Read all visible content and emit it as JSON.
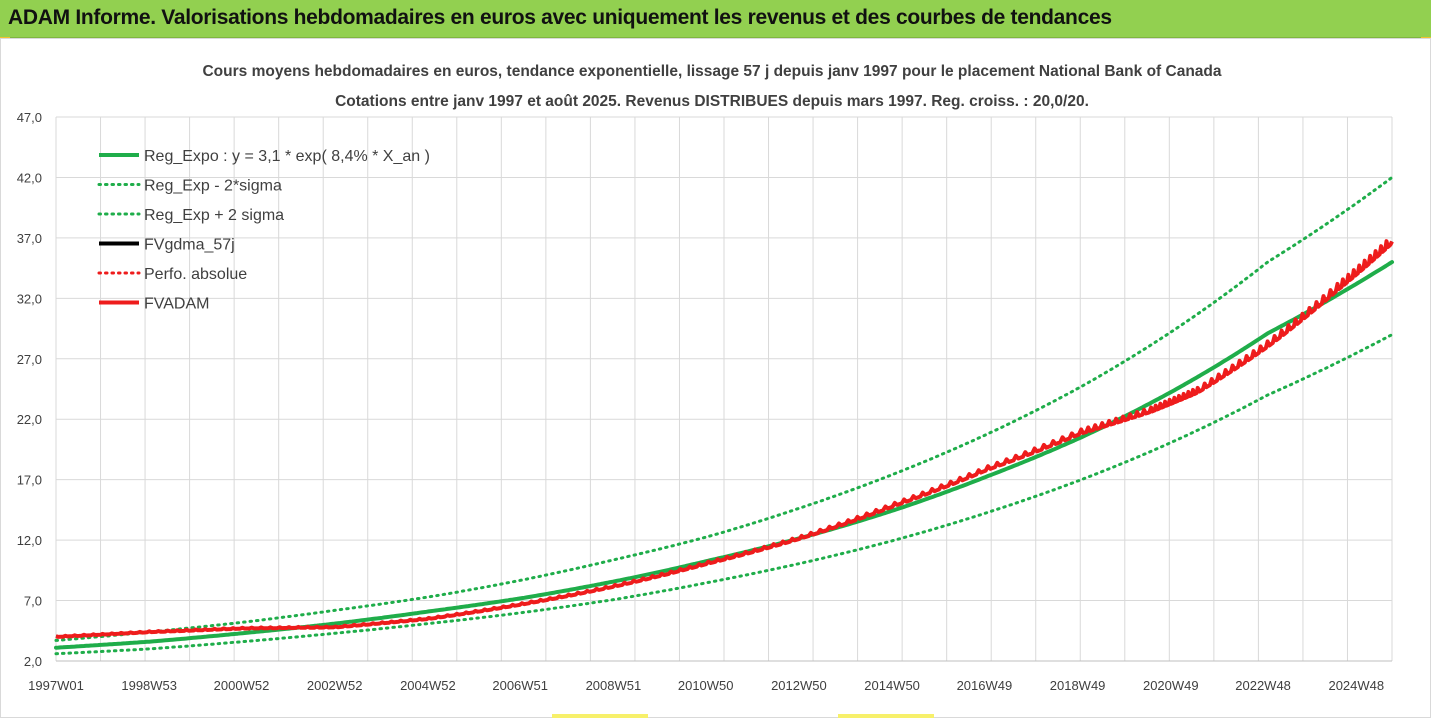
{
  "banner": {
    "title": "ADAM Informe. Valorisations hebdomadaires en euros avec uniquement les revenus et des courbes de tendances"
  },
  "colors": {
    "banner": "#92d050",
    "green": "#1fad4a",
    "red": "#ee1c1c",
    "black": "#000000",
    "grid": "#d9d9d9"
  },
  "chart_data": {
    "type": "line",
    "title_line1": "Cours moyens hebdomadaires en euros, tendance exponentielle, lissage 57 j depuis janv 1997 pour le placement National Bank of Canada",
    "title_line2": "Cotations entre janv 1997 et août 2025. Revenus DISTRIBUES depuis mars 1997. Reg. croiss. : 20,0/20.",
    "y_ticks": [
      "2,0",
      "7,0",
      "12,0",
      "17,0",
      "22,0",
      "27,0",
      "32,0",
      "37,0",
      "42,0",
      "47,0"
    ],
    "ylim": [
      2,
      47
    ],
    "x_ticks": [
      "1997W01",
      "1998W53",
      "2000W52",
      "2002W52",
      "2004W52",
      "2006W51",
      "2008W51",
      "2010W50",
      "2012W50",
      "2014W50",
      "2016W49",
      "2018W49",
      "2020W49",
      "2022W48",
      "2024W48"
    ],
    "xlim": [
      1997.0,
      2025.67
    ],
    "grid": true,
    "legend_position": "top-left",
    "legend": [
      {
        "label": "Reg_Expo : y = 3,1 * exp( 8,4% *  X_an )",
        "color": "#1fad4a",
        "style": "solid"
      },
      {
        "label": "Reg_Exp - 2*sigma",
        "color": "#1fad4a",
        "style": "dotted"
      },
      {
        "label": "Reg_Exp + 2 sigma",
        "color": "#1fad4a",
        "style": "dotted"
      },
      {
        "label": "FVgdma_57j",
        "color": "#000000",
        "style": "solid"
      },
      {
        "label": "Perfo. absolue",
        "color": "#ee1c1c",
        "style": "dotted"
      },
      {
        "label": "FVADAM",
        "color": "#ee1c1c",
        "style": "solid"
      }
    ],
    "series": [
      {
        "name": "Reg_Expo : y = 3,1 * exp( 8,4% *  X_an )",
        "x": [
          1997.0,
          1999.0,
          2001.0,
          2003.0,
          2005.0,
          2007.0,
          2009.0,
          2011.0,
          2013.0,
          2015.0,
          2017.0,
          2019.0,
          2021.0,
          2023.0,
          2025.67
        ],
        "y": [
          3.1,
          3.6,
          4.3,
          5.1,
          6.1,
          7.2,
          8.6,
          10.3,
          12.2,
          14.5,
          17.3,
          20.5,
          24.4,
          29.1,
          35.0
        ]
      },
      {
        "name": "Reg_Exp - 2*sigma",
        "x": [
          1997.0,
          1999.0,
          2001.0,
          2003.0,
          2005.0,
          2007.0,
          2009.0,
          2011.0,
          2013.0,
          2015.0,
          2017.0,
          2019.0,
          2021.0,
          2023.0,
          2025.67
        ],
        "y": [
          2.6,
          3.0,
          3.6,
          4.3,
          5.1,
          6.0,
          7.1,
          8.5,
          10.1,
          12.0,
          14.3,
          17.0,
          20.2,
          24.0,
          29.0
        ]
      },
      {
        "name": "Reg_Exp + 2 sigma",
        "x": [
          1997.0,
          1999.0,
          2001.0,
          2003.0,
          2005.0,
          2007.0,
          2009.0,
          2011.0,
          2013.0,
          2015.0,
          2017.0,
          2019.0,
          2021.0,
          2023.0,
          2025.67
        ],
        "y": [
          3.7,
          4.4,
          5.2,
          6.2,
          7.3,
          8.7,
          10.4,
          12.3,
          14.7,
          17.5,
          20.8,
          24.7,
          29.4,
          35.0,
          42.0
        ]
      },
      {
        "name": "FVgdma_57j",
        "x": [
          1997.0,
          1999.0,
          2001.0,
          2003.0,
          2005.0,
          2007.0,
          2009.0,
          2011.0,
          2013.0,
          2015.0,
          2017.0,
          2019.0,
          2020.5,
          2021.5,
          2023.0,
          2024.5,
          2025.67
        ],
        "y": [
          4.0,
          4.4,
          4.7,
          4.8,
          5.5,
          6.7,
          8.2,
          10.1,
          12.2,
          14.9,
          17.9,
          20.9,
          22.7,
          24.3,
          28.1,
          32.8,
          36.7
        ]
      },
      {
        "name": "FVADAM",
        "x": [
          1997.0,
          1999.0,
          2001.0,
          2003.0,
          2005.0,
          2007.0,
          2009.0,
          2011.0,
          2013.0,
          2015.0,
          2017.0,
          2019.0,
          2020.5,
          2021.5,
          2023.0,
          2024.5,
          2025.67
        ],
        "y": [
          4.0,
          4.4,
          4.7,
          4.8,
          5.5,
          6.7,
          8.2,
          10.1,
          12.2,
          14.9,
          17.9,
          20.9,
          22.7,
          24.3,
          28.1,
          32.8,
          36.7
        ]
      }
    ]
  }
}
